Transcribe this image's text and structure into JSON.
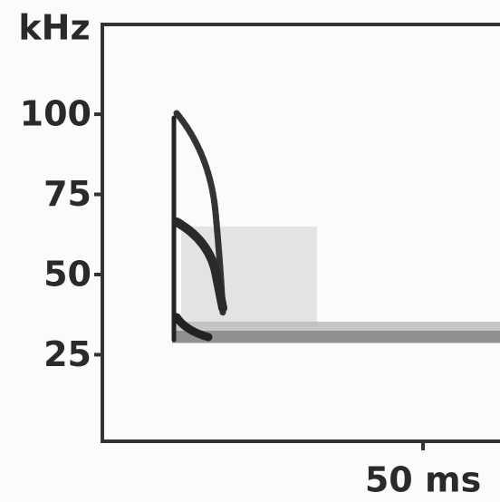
{
  "chart_data": {
    "type": "spectrogram",
    "y_label": "kHz",
    "ylim": [
      -2,
      128
    ],
    "yticks": [
      25,
      50,
      75,
      100
    ],
    "xlim": [
      0,
      62
    ],
    "xticks": [
      {
        "value": 50,
        "label": "50 ms"
      }
    ]
  }
}
